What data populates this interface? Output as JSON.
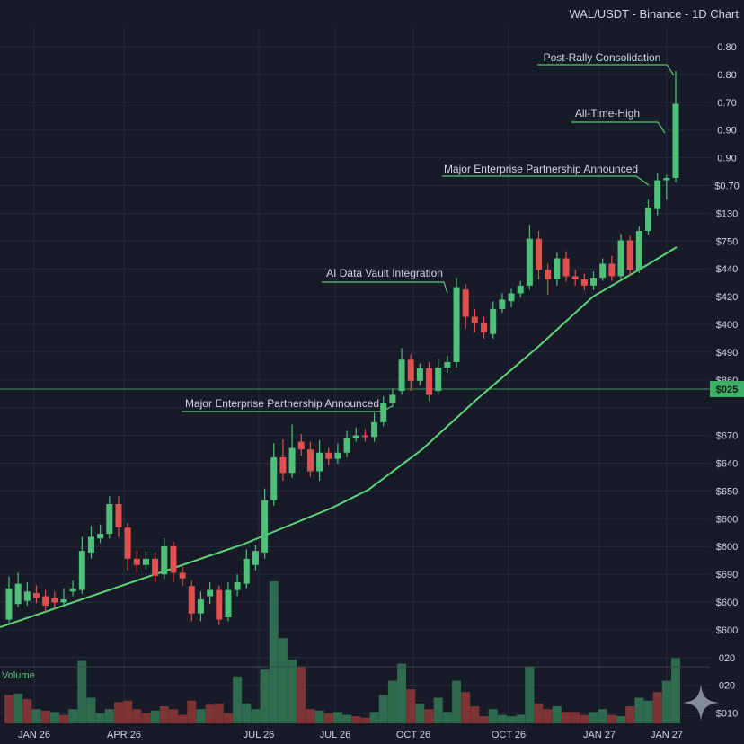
{
  "header": {
    "title": "WAL/USDT - Binance - 1D Chart"
  },
  "colors": {
    "background": "#171a27",
    "grid": "#262b3c",
    "up": "#4ec07a",
    "down": "#e0504f",
    "vol_up": "#2f6b4f",
    "vol_down": "#7e3434",
    "trend": "#5fd47a",
    "text": "#d2d6e0",
    "annotation_line": "#59c37b",
    "price_tag_bg": "#3fae66"
  },
  "chart_data": {
    "type": "candlestick",
    "symbol": "WAL/USDT",
    "y_axis_labels": [
      "0.80",
      "0.80",
      "0.70",
      "0.90",
      "0.90",
      "$0.70",
      "$130",
      "$750",
      "$440",
      "$420",
      "$400",
      "$490",
      "$860",
      "$025",
      "$670",
      "$640",
      "$650",
      "$600",
      "$600",
      "$690",
      "$600",
      "$600",
      "020",
      "020",
      "$010"
    ],
    "x_axis_labels": [
      "JAN 26",
      "APR 26",
      "JUL 26",
      "JUL 26",
      "OCT 26",
      "OCT 26",
      "JAN 27",
      "JAN 27"
    ],
    "price_tag": "$025",
    "volume_label": "Volume",
    "annotations": [
      {
        "text": "Post-Rally Consolidation"
      },
      {
        "text": "All-Time-High"
      },
      {
        "text": "Major Enterprise Partnership Announced"
      },
      {
        "text": "AI Data Vault Integration"
      },
      {
        "text": "Major Enterprise Partnership Announced"
      }
    ],
    "candles": [
      {
        "o": 612,
        "c": 652,
        "h": 667,
        "l": 605
      },
      {
        "o": 632,
        "c": 658,
        "h": 672,
        "l": 628
      },
      {
        "o": 636,
        "c": 648,
        "h": 660,
        "l": 630
      },
      {
        "o": 646,
        "c": 640,
        "h": 656,
        "l": 633
      },
      {
        "o": 642,
        "c": 630,
        "h": 650,
        "l": 622
      },
      {
        "o": 640,
        "c": 634,
        "h": 648,
        "l": 626
      },
      {
        "o": 634,
        "c": 638,
        "h": 652,
        "l": 628
      },
      {
        "o": 648,
        "c": 652,
        "h": 662,
        "l": 642
      },
      {
        "o": 650,
        "c": 700,
        "h": 718,
        "l": 645
      },
      {
        "o": 698,
        "c": 718,
        "h": 732,
        "l": 690
      },
      {
        "o": 716,
        "c": 722,
        "h": 734,
        "l": 710
      },
      {
        "o": 722,
        "c": 760,
        "h": 770,
        "l": 716
      },
      {
        "o": 760,
        "c": 730,
        "h": 770,
        "l": 718
      },
      {
        "o": 730,
        "c": 690,
        "h": 736,
        "l": 675
      },
      {
        "o": 690,
        "c": 682,
        "h": 700,
        "l": 672
      },
      {
        "o": 682,
        "c": 690,
        "h": 700,
        "l": 676
      },
      {
        "o": 690,
        "c": 668,
        "h": 698,
        "l": 660
      },
      {
        "o": 670,
        "c": 706,
        "h": 716,
        "l": 664
      },
      {
        "o": 706,
        "c": 672,
        "h": 712,
        "l": 660
      },
      {
        "o": 672,
        "c": 665,
        "h": 680,
        "l": 655
      },
      {
        "o": 655,
        "c": 620,
        "h": 662,
        "l": 610
      },
      {
        "o": 620,
        "c": 638,
        "h": 648,
        "l": 610
      },
      {
        "o": 642,
        "c": 650,
        "h": 660,
        "l": 632
      },
      {
        "o": 650,
        "c": 612,
        "h": 656,
        "l": 605
      },
      {
        "o": 615,
        "c": 650,
        "h": 660,
        "l": 610
      },
      {
        "o": 650,
        "c": 660,
        "h": 670,
        "l": 642
      },
      {
        "o": 658,
        "c": 690,
        "h": 702,
        "l": 652
      },
      {
        "o": 682,
        "c": 700,
        "h": 708,
        "l": 675
      },
      {
        "o": 698,
        "c": 765,
        "h": 780,
        "l": 690
      },
      {
        "o": 765,
        "c": 820,
        "h": 838,
        "l": 758
      },
      {
        "o": 820,
        "c": 800,
        "h": 843,
        "l": 790
      },
      {
        "o": 800,
        "c": 832,
        "h": 862,
        "l": 794
      },
      {
        "o": 840,
        "c": 830,
        "h": 850,
        "l": 822
      },
      {
        "o": 830,
        "c": 802,
        "h": 840,
        "l": 795
      },
      {
        "o": 802,
        "c": 826,
        "h": 842,
        "l": 790
      },
      {
        "o": 826,
        "c": 818,
        "h": 832,
        "l": 810
      },
      {
        "o": 818,
        "c": 826,
        "h": 838,
        "l": 812
      },
      {
        "o": 826,
        "c": 844,
        "h": 854,
        "l": 820
      },
      {
        "o": 844,
        "c": 848,
        "h": 858,
        "l": 840
      },
      {
        "o": 848,
        "c": 846,
        "h": 856,
        "l": 840
      },
      {
        "o": 846,
        "c": 865,
        "h": 877,
        "l": 840
      },
      {
        "o": 865,
        "c": 890,
        "h": 898,
        "l": 860
      },
      {
        "o": 890,
        "c": 900,
        "h": 908,
        "l": 884
      },
      {
        "o": 905,
        "c": 945,
        "h": 960,
        "l": 900
      },
      {
        "o": 945,
        "c": 918,
        "h": 952,
        "l": 905
      },
      {
        "o": 918,
        "c": 934,
        "h": 940,
        "l": 912
      },
      {
        "o": 934,
        "c": 900,
        "h": 942,
        "l": 892
      },
      {
        "o": 905,
        "c": 935,
        "h": 946,
        "l": 900
      },
      {
        "o": 935,
        "c": 942,
        "h": 950,
        "l": 928
      },
      {
        "o": 942,
        "c": 1038,
        "h": 1050,
        "l": 935
      },
      {
        "o": 1035,
        "c": 1000,
        "h": 1042,
        "l": 985
      },
      {
        "o": 1000,
        "c": 992,
        "h": 1010,
        "l": 980
      },
      {
        "o": 992,
        "c": 980,
        "h": 1000,
        "l": 972
      },
      {
        "o": 978,
        "c": 1010,
        "h": 1020,
        "l": 972
      },
      {
        "o": 1010,
        "c": 1022,
        "h": 1030,
        "l": 1005
      },
      {
        "o": 1020,
        "c": 1030,
        "h": 1036,
        "l": 1012
      },
      {
        "o": 1030,
        "c": 1040,
        "h": 1046,
        "l": 1025
      },
      {
        "o": 1040,
        "c": 1100,
        "h": 1118,
        "l": 1035
      },
      {
        "o": 1100,
        "c": 1060,
        "h": 1110,
        "l": 1048
      },
      {
        "o": 1060,
        "c": 1048,
        "h": 1068,
        "l": 1028
      },
      {
        "o": 1048,
        "c": 1075,
        "h": 1082,
        "l": 1040
      },
      {
        "o": 1075,
        "c": 1052,
        "h": 1084,
        "l": 1045
      },
      {
        "o": 1052,
        "c": 1048,
        "h": 1060,
        "l": 1040
      },
      {
        "o": 1048,
        "c": 1040,
        "h": 1055,
        "l": 1034
      },
      {
        "o": 1040,
        "c": 1050,
        "h": 1058,
        "l": 1034
      },
      {
        "o": 1050,
        "c": 1068,
        "h": 1075,
        "l": 1046
      },
      {
        "o": 1068,
        "c": 1052,
        "h": 1078,
        "l": 1046
      },
      {
        "o": 1052,
        "c": 1098,
        "h": 1106,
        "l": 1048
      },
      {
        "o": 1098,
        "c": 1060,
        "h": 1104,
        "l": 1052
      },
      {
        "o": 1060,
        "c": 1110,
        "h": 1116,
        "l": 1056
      },
      {
        "o": 1110,
        "c": 1140,
        "h": 1150,
        "l": 1105
      },
      {
        "o": 1138,
        "c": 1175,
        "h": 1184,
        "l": 1130
      },
      {
        "o": 1175,
        "c": 1178,
        "h": 1182,
        "l": 1150
      },
      {
        "o": 1178,
        "c": 1273,
        "h": 1315,
        "l": 1172
      }
    ],
    "volume": [
      {
        "v": 0.2,
        "up": false
      },
      {
        "v": 0.21,
        "up": true
      },
      {
        "v": 0.17,
        "up": false
      },
      {
        "v": 0.1,
        "up": true
      },
      {
        "v": 0.09,
        "up": false
      },
      {
        "v": 0.08,
        "up": true
      },
      {
        "v": 0.06,
        "up": false
      },
      {
        "v": 0.1,
        "up": true
      },
      {
        "v": 0.44,
        "up": true
      },
      {
        "v": 0.18,
        "up": true
      },
      {
        "v": 0.07,
        "up": true
      },
      {
        "v": 0.1,
        "up": true
      },
      {
        "v": 0.15,
        "up": false
      },
      {
        "v": 0.16,
        "up": false
      },
      {
        "v": 0.1,
        "up": false
      },
      {
        "v": 0.07,
        "up": false
      },
      {
        "v": 0.09,
        "up": true
      },
      {
        "v": 0.12,
        "up": false
      },
      {
        "v": 0.1,
        "up": false
      },
      {
        "v": 0.06,
        "up": false
      },
      {
        "v": 0.16,
        "up": false
      },
      {
        "v": 0.1,
        "up": true
      },
      {
        "v": 0.13,
        "up": false
      },
      {
        "v": 0.14,
        "up": false
      },
      {
        "v": 0.07,
        "up": false
      },
      {
        "v": 0.33,
        "up": true
      },
      {
        "v": 0.14,
        "up": true
      },
      {
        "v": 0.1,
        "up": true
      },
      {
        "v": 0.38,
        "up": true
      },
      {
        "v": 1.0,
        "up": true
      },
      {
        "v": 0.6,
        "up": true
      },
      {
        "v": 0.45,
        "up": true
      },
      {
        "v": 0.4,
        "up": false
      },
      {
        "v": 0.1,
        "up": false
      },
      {
        "v": 0.09,
        "up": true
      },
      {
        "v": 0.07,
        "up": false
      },
      {
        "v": 0.08,
        "up": true
      },
      {
        "v": 0.06,
        "up": true
      },
      {
        "v": 0.05,
        "up": false
      },
      {
        "v": 0.04,
        "up": false
      },
      {
        "v": 0.08,
        "up": true
      },
      {
        "v": 0.2,
        "up": true
      },
      {
        "v": 0.3,
        "up": true
      },
      {
        "v": 0.42,
        "up": true
      },
      {
        "v": 0.24,
        "up": false
      },
      {
        "v": 0.14,
        "up": true
      },
      {
        "v": 0.1,
        "up": false
      },
      {
        "v": 0.18,
        "up": true
      },
      {
        "v": 0.08,
        "up": true
      },
      {
        "v": 0.3,
        "up": true
      },
      {
        "v": 0.22,
        "up": false
      },
      {
        "v": 0.12,
        "up": false
      },
      {
        "v": 0.05,
        "up": false
      },
      {
        "v": 0.1,
        "up": true
      },
      {
        "v": 0.06,
        "up": true
      },
      {
        "v": 0.05,
        "up": true
      },
      {
        "v": 0.06,
        "up": true
      },
      {
        "v": 0.4,
        "up": true
      },
      {
        "v": 0.14,
        "up": false
      },
      {
        "v": 0.1,
        "up": false
      },
      {
        "v": 0.12,
        "up": true
      },
      {
        "v": 0.08,
        "up": false
      },
      {
        "v": 0.08,
        "up": false
      },
      {
        "v": 0.06,
        "up": false
      },
      {
        "v": 0.08,
        "up": true
      },
      {
        "v": 0.1,
        "up": true
      },
      {
        "v": 0.06,
        "up": false
      },
      {
        "v": 0.05,
        "up": true
      },
      {
        "v": 0.12,
        "up": false
      },
      {
        "v": 0.18,
        "up": true
      },
      {
        "v": 0.16,
        "up": true
      },
      {
        "v": 0.22,
        "up": false
      },
      {
        "v": 0.3,
        "up": true
      },
      {
        "v": 0.46,
        "up": true
      }
    ]
  }
}
